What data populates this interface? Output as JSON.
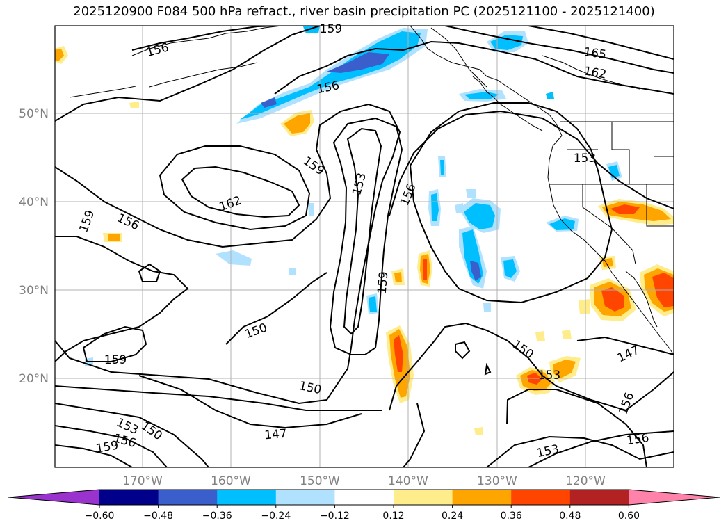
{
  "title": "2025120900 F084 500 hPa refract., river basin precipitation PC (2025121100 - 2025121400)",
  "lon_labels": [
    "170°W",
    "160°W",
    "150°W",
    "140°W",
    "130°W",
    "120°W"
  ],
  "lat_labels": [
    "50°N",
    "40°N",
    "30°N",
    "20°N"
  ],
  "colorbar": {
    "ticks": [
      "−0.60",
      "−0.48",
      "−0.36",
      "−0.24",
      "−0.12",
      "0.12",
      "0.24",
      "0.36",
      "0.48",
      "0.60"
    ],
    "colors": [
      "#9a32cd",
      "#00008b",
      "#3a5fcd",
      "#00bfff",
      "#b0e2ff",
      "#ffffff",
      "#ffec8b",
      "#ffa500",
      "#ff4500",
      "#b22222",
      "#ff82ab"
    ]
  },
  "contour_labels": {
    "c1": "156",
    "c2": "165",
    "c3": "162",
    "c4": "156",
    "c5": "159",
    "c6": "153",
    "c7": "156",
    "c8": "162",
    "c9": "159",
    "c10": "156",
    "c11": "159",
    "c12": "150",
    "c13": "159",
    "c14": "150",
    "c15": "153",
    "c16": "150",
    "c17": "156",
    "c18": "159",
    "c19": "147",
    "c20": "150",
    "c21": "153",
    "c22": "147",
    "c23": "156",
    "c24": "153",
    "c25": "156",
    "c26": "153"
  },
  "top_label": "159"
}
